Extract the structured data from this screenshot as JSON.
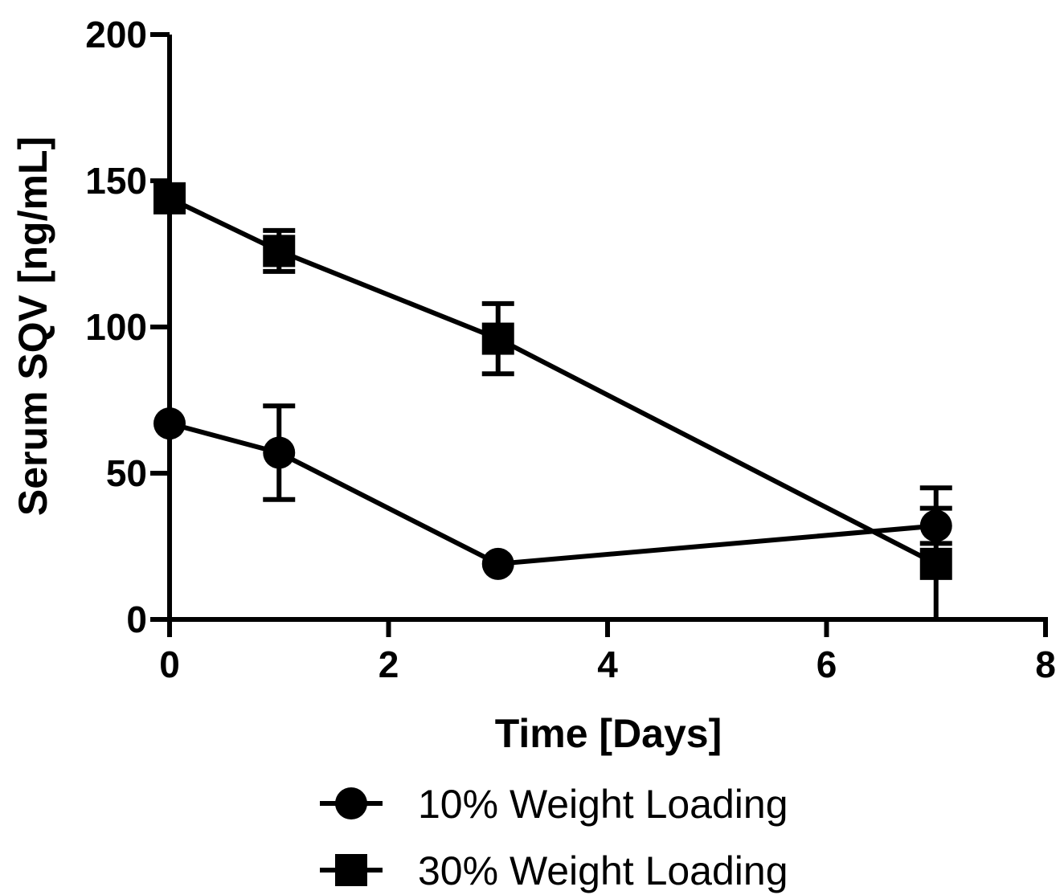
{
  "chart_data": {
    "type": "line",
    "title": "",
    "xlabel": "Time [Days]",
    "ylabel": "Serum SQV [ng/mL]",
    "xlim": [
      0,
      8
    ],
    "ylim": [
      0,
      200
    ],
    "xticks": [
      0,
      2,
      4,
      6,
      8
    ],
    "yticks": [
      0,
      50,
      100,
      150,
      200
    ],
    "grid": false,
    "legend": "bottom",
    "series": [
      {
        "name": "10% Weight Loading",
        "marker": "circle",
        "color": "#000000",
        "points": [
          {
            "x": 0,
            "y": 67,
            "err": 0
          },
          {
            "x": 1,
            "y": 57,
            "err": 16
          },
          {
            "x": 3,
            "y": 19,
            "err": 0
          },
          {
            "x": 7,
            "y": 32,
            "err": 6
          }
        ]
      },
      {
        "name": "30% Weight Loading",
        "marker": "square",
        "color": "#000000",
        "points": [
          {
            "x": 0,
            "y": 144,
            "err": 0
          },
          {
            "x": 1,
            "y": 126,
            "err": 7
          },
          {
            "x": 3,
            "y": 96,
            "err": 12
          },
          {
            "x": 7,
            "y": 19,
            "err": 26
          }
        ]
      }
    ]
  }
}
